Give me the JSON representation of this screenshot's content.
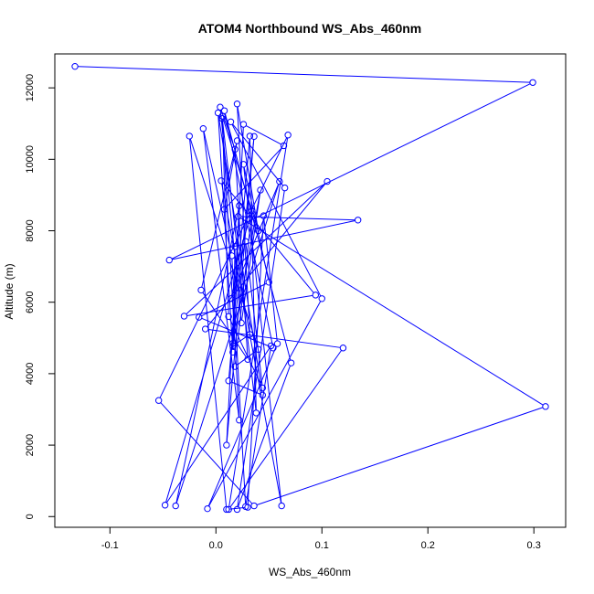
{
  "chart_data": {
    "type": "line",
    "title": "ATOM4 Northbound WS_Abs_460nm",
    "xlabel": "WS_Abs_460nm",
    "ylabel": "Altitude (m)",
    "xlim": [
      -0.152,
      0.33
    ],
    "ylim": [
      -300,
      12950
    ],
    "xticks": [
      -0.1,
      0.0,
      0.1,
      0.2,
      0.3
    ],
    "xtick_labels": [
      "-0.1",
      "0.0",
      "0.1",
      "0.2",
      "0.3"
    ],
    "yticks": [
      0,
      2000,
      4000,
      6000,
      8000,
      10000,
      12000
    ],
    "ytick_labels": [
      "0",
      "2000",
      "4000",
      "6000",
      "8000",
      "10000",
      "12000"
    ],
    "grid": false,
    "legend": "none",
    "series_color": "#0000ff",
    "marker": "open-circle",
    "series": [
      {
        "x": [
          -0.133,
          0.299,
          -0.044,
          0.134,
          0.021,
          0.311,
          0.036,
          -0.054,
          0.068,
          0.012,
          0.12,
          -0.01,
          0.105,
          -0.03,
          0.094,
          0.005,
          0.062,
          0.026,
          0.05,
          -0.016,
          0.054,
          0.008,
          0.071,
          0.02,
          0.065,
          0.014,
          0.1,
          -0.008,
          0.058,
          0.045,
          0.03,
          0.01,
          -0.025,
          0.04,
          0.018,
          0.034,
          -0.048,
          0.052,
          0.028,
          0.015,
          -0.012,
          0.022,
          0.006,
          0.038,
          0.032,
          0.012,
          0.044,
          0.002,
          0.016,
          0.026,
          0.064,
          0.008,
          0.02,
          -0.014,
          0.03,
          0.018,
          0.004,
          0.024,
          0.042,
          0.016,
          0.036,
          0.01,
          0.022,
          -0.038,
          0.06,
          0.014,
          0.028,
          0.044,
          0.012,
          0.006,
          0.04,
          0.02,
          0.032,
          0.016,
          0.018
        ],
        "y": [
          12600,
          12150,
          7180,
          8300,
          8400,
          3080,
          300,
          3250,
          10680,
          200,
          4720,
          5250,
          9380,
          5610,
          6200,
          9400,
          300,
          9860,
          6560,
          5580,
          4720,
          11360,
          4300,
          200,
          9200,
          11050,
          6100,
          220,
          4840,
          8420,
          260,
          200,
          10650,
          4680,
          4200,
          8560,
          320,
          4780,
          280,
          7300,
          10860,
          2700,
          11140,
          2900,
          10650,
          3800,
          3400,
          11300,
          4600,
          10980,
          10380,
          8600,
          10520,
          6340,
          4400,
          10280,
          11460,
          5420,
          9140,
          4850,
          10640,
          2000,
          8700,
          300,
          9380,
          6100,
          7700,
          3600,
          5600,
          11210,
          8000,
          11550,
          5100,
          4780,
          7560
        ]
      }
    ]
  }
}
